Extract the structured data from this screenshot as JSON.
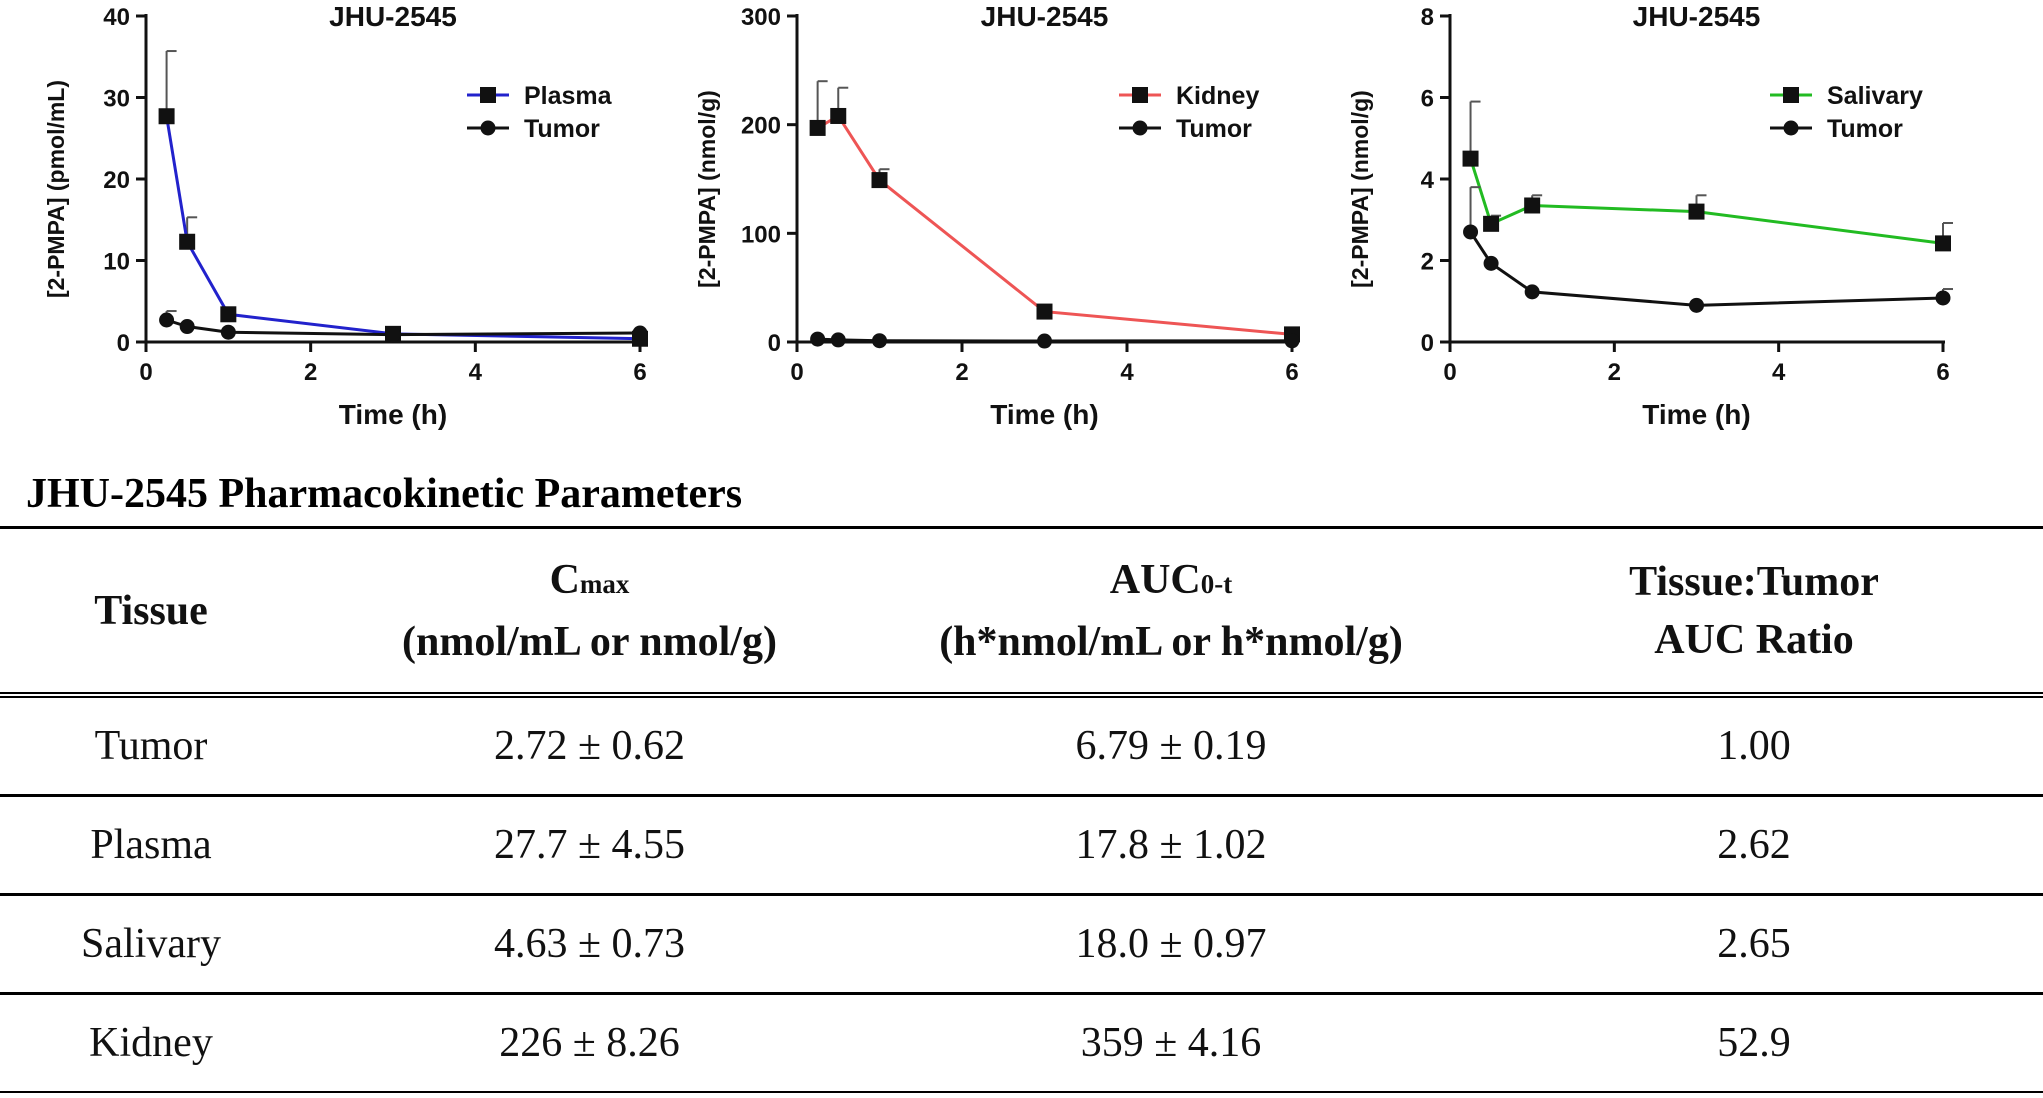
{
  "chart_data": [
    {
      "type": "line",
      "title": "JHU-2545",
      "xlabel": "Time (h)",
      "ylabel": "[2-PMPA] (pmol/mL)",
      "xlim": [
        0,
        6
      ],
      "ylim": [
        0,
        40
      ],
      "xticks": [
        0,
        2,
        4,
        6
      ],
      "yticks": [
        0,
        10,
        20,
        30,
        40
      ],
      "legend_position": "top-right",
      "series": [
        {
          "name": "Plasma",
          "color": "#2222cc",
          "marker": "square",
          "x": [
            0.25,
            0.5,
            1,
            3,
            6
          ],
          "y": [
            27.7,
            12.3,
            3.4,
            1.0,
            0.4
          ],
          "err": [
            8.0,
            3.0,
            0,
            0,
            0
          ]
        },
        {
          "name": "Tumor",
          "color": "#111111",
          "marker": "circle",
          "x": [
            0.25,
            0.5,
            1,
            3,
            6
          ],
          "y": [
            2.7,
            1.9,
            1.2,
            0.9,
            1.1
          ],
          "err": [
            1.1,
            0,
            0,
            0,
            0
          ]
        }
      ]
    },
    {
      "type": "line",
      "title": "JHU-2545",
      "xlabel": "Time (h)",
      "ylabel": "[2-PMPA] (nmol/g)",
      "xlim": [
        0,
        6
      ],
      "ylim": [
        0,
        300
      ],
      "xticks": [
        0,
        2,
        4,
        6
      ],
      "yticks": [
        0,
        100,
        200,
        300
      ],
      "legend_position": "top-right",
      "series": [
        {
          "name": "Kidney",
          "color": "#ee5555",
          "marker": "square",
          "x": [
            0.25,
            0.5,
            1,
            3,
            6
          ],
          "y": [
            197,
            208,
            149,
            28,
            7
          ],
          "err": [
            43,
            26,
            10,
            0,
            0
          ]
        },
        {
          "name": "Tumor",
          "color": "#111111",
          "marker": "circle",
          "x": [
            0.25,
            0.5,
            1,
            3,
            6
          ],
          "y": [
            2.7,
            1.9,
            1.2,
            0.9,
            1.1
          ],
          "err": [
            0,
            0,
            0,
            0,
            0
          ]
        }
      ]
    },
    {
      "type": "line",
      "title": "JHU-2545",
      "xlabel": "Time (h)",
      "ylabel": "[2-PMPA] (nmol/g)",
      "xlim": [
        0,
        6
      ],
      "ylim": [
        0,
        8
      ],
      "xticks": [
        0,
        2,
        4,
        6
      ],
      "yticks": [
        0,
        2,
        4,
        6,
        8
      ],
      "legend_position": "top-right",
      "series": [
        {
          "name": "Salivary",
          "color": "#22bb22",
          "marker": "square",
          "x": [
            0.25,
            0.5,
            1,
            3,
            6
          ],
          "y": [
            4.5,
            2.9,
            3.35,
            3.2,
            2.42
          ],
          "err": [
            1.4,
            0.2,
            0.25,
            0.4,
            0.5
          ]
        },
        {
          "name": "Tumor",
          "color": "#111111",
          "marker": "circle",
          "x": [
            0.25,
            0.5,
            1,
            3,
            6
          ],
          "y": [
            2.7,
            1.93,
            1.23,
            0.9,
            1.08
          ],
          "err": [
            1.1,
            0,
            0,
            0,
            0.22
          ]
        }
      ]
    }
  ],
  "table": {
    "title": "JHU-2545 Pharmacokinetic Parameters",
    "headers": {
      "tissue": "Tissue",
      "cmax_main": "C",
      "cmax_sub": "max",
      "cmax_units": "(nmol/mL or nmol/g)",
      "auc_main": "AUC",
      "auc_sub": "0-t",
      "auc_units": "(h*nmol/mL or h*nmol/g)",
      "ratio_line1": "Tissue:Tumor",
      "ratio_line2": "AUC Ratio"
    },
    "rows": [
      {
        "tissue": "Tumor",
        "cmax": "2.72 ± 0.62",
        "auc": "6.79 ± 0.19",
        "ratio": "1.00"
      },
      {
        "tissue": "Plasma",
        "cmax": "27.7 ± 4.55",
        "auc": "17.8 ± 1.02",
        "ratio": "2.62"
      },
      {
        "tissue": "Salivary",
        "cmax": "4.63 ± 0.73",
        "auc": "18.0 ± 0.97",
        "ratio": "2.65"
      },
      {
        "tissue": "Kidney",
        "cmax": "226 ± 8.26",
        "auc": "359 ± 4.16",
        "ratio": "52.9"
      }
    ]
  }
}
